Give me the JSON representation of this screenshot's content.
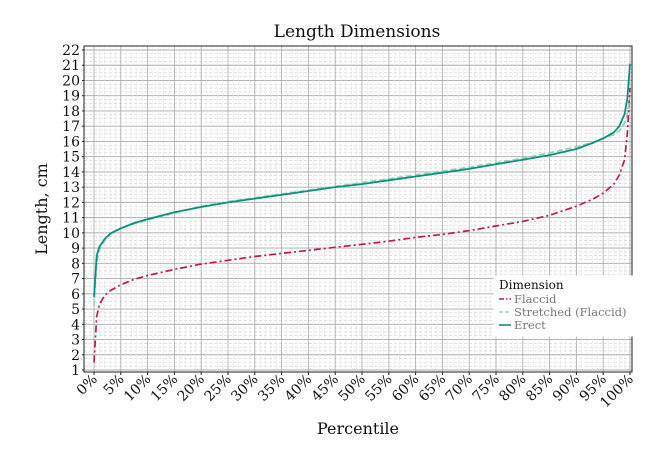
{
  "chart_data": {
    "type": "line",
    "title": "Length Dimensions",
    "xlabel": "Percentile",
    "ylabel": "Length, cm",
    "xlim": [
      0,
      100
    ],
    "ylim": [
      1,
      22
    ],
    "x_ticks": [
      "0%",
      "5%",
      "10%",
      "15%",
      "20%",
      "25%",
      "30%",
      "35%",
      "40%",
      "45%",
      "50%",
      "55%",
      "60%",
      "65%",
      "70%",
      "75%",
      "80%",
      "85%",
      "90%",
      "95%",
      "100%"
    ],
    "y_ticks": [
      1,
      2,
      3,
      4,
      5,
      6,
      7,
      8,
      9,
      10,
      11,
      12,
      13,
      14,
      15,
      16,
      17,
      18,
      19,
      20,
      21,
      22
    ],
    "grid": true,
    "legend": {
      "title": "Dimension",
      "position": "bottom-right"
    },
    "series": [
      {
        "name": "Flaccid",
        "color": "#c2185b",
        "style": "dashdot",
        "x": [
          0,
          0.5,
          1,
          2,
          3,
          5,
          7.5,
          10,
          15,
          20,
          25,
          30,
          35,
          40,
          45,
          50,
          55,
          60,
          65,
          70,
          75,
          80,
          85,
          90,
          93,
          95,
          97,
          98,
          99,
          99.5,
          100
        ],
        "y": [
          1.5,
          4.5,
          5.3,
          5.9,
          6.2,
          6.6,
          6.95,
          7.2,
          7.6,
          7.95,
          8.2,
          8.45,
          8.65,
          8.85,
          9.05,
          9.25,
          9.45,
          9.7,
          9.9,
          10.15,
          10.45,
          10.75,
          11.15,
          11.75,
          12.2,
          12.6,
          13.2,
          13.8,
          14.8,
          16.5,
          19.5
        ]
      },
      {
        "name": "Stretched (Flaccid)",
        "color": "#8ed3b8",
        "style": "dashed",
        "x": [
          0,
          0.5,
          1,
          2,
          3,
          5,
          7.5,
          10,
          15,
          20,
          25,
          30,
          35,
          40,
          45,
          50,
          55,
          60,
          65,
          70,
          75,
          80,
          85,
          90,
          93,
          95,
          97,
          98,
          99,
          99.5,
          100
        ],
        "y": [
          5.2,
          8.0,
          8.9,
          9.5,
          9.9,
          10.3,
          10.6,
          10.85,
          11.3,
          11.75,
          12.05,
          12.3,
          12.55,
          12.8,
          13.05,
          13.3,
          13.55,
          13.8,
          14.05,
          14.3,
          14.6,
          14.9,
          15.25,
          15.65,
          15.95,
          16.2,
          16.45,
          16.7,
          17.2,
          17.8,
          18.9
        ]
      },
      {
        "name": "Erect",
        "color": "#0f8f80",
        "style": "solid",
        "x": [
          0,
          0.5,
          1,
          2,
          3,
          5,
          7.5,
          10,
          15,
          20,
          25,
          30,
          35,
          40,
          45,
          50,
          55,
          60,
          65,
          70,
          75,
          80,
          85,
          90,
          93,
          95,
          97,
          98,
          99,
          99.5,
          100
        ],
        "y": [
          5.8,
          8.5,
          9.1,
          9.6,
          9.95,
          10.3,
          10.65,
          10.9,
          11.35,
          11.7,
          12.0,
          12.25,
          12.5,
          12.75,
          13.0,
          13.2,
          13.45,
          13.7,
          13.95,
          14.2,
          14.5,
          14.8,
          15.1,
          15.5,
          15.9,
          16.2,
          16.6,
          17.0,
          17.8,
          18.8,
          21.1
        ]
      }
    ]
  }
}
